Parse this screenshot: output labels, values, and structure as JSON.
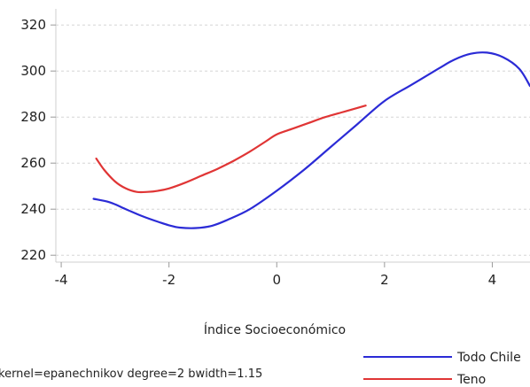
{
  "chart_data": {
    "type": "line",
    "title": "",
    "xlabel": "Índice Socioeconómico",
    "ylabel": "",
    "xlim": [
      -4.1,
      4.7
    ],
    "ylim": [
      217,
      327
    ],
    "x_ticks": [
      -4,
      -2,
      0,
      2,
      4
    ],
    "y_ticks": [
      220,
      240,
      260,
      280,
      300,
      320
    ],
    "x_tick_labels": [
      "-4",
      "-2",
      "0",
      "2",
      "4"
    ],
    "y_tick_labels": [
      "220",
      "240",
      "260",
      "280",
      "300",
      "320"
    ],
    "grid": "horizontal dashed",
    "legend_position": "bottom-right",
    "note": "kernel=epanechnikov degree=2 bwidth=1.15",
    "series": [
      {
        "name": "Todo Chile",
        "color": "#2b2bd6",
        "x": [
          -3.4,
          -3.1,
          -2.8,
          -2.5,
          -2.2,
          -2.0,
          -1.8,
          -1.5,
          -1.2,
          -0.9,
          -0.5,
          0.0,
          0.5,
          1.0,
          1.5,
          2.0,
          2.5,
          3.0,
          3.3,
          3.6,
          3.9,
          4.2,
          4.5,
          4.7
        ],
        "values": [
          244.5,
          243,
          240,
          237,
          234.5,
          233,
          232,
          231.8,
          232.8,
          235.5,
          240,
          248,
          257,
          267,
          277,
          287,
          294,
          301,
          305,
          307.5,
          308,
          306,
          301,
          293.5
        ]
      },
      {
        "name": "Teno",
        "color": "#e03535",
        "x": [
          -3.35,
          -3.2,
          -3.0,
          -2.8,
          -2.6,
          -2.4,
          -2.2,
          -2.0,
          -1.7,
          -1.4,
          -1.1,
          -0.8,
          -0.5,
          -0.2,
          0.0,
          0.3,
          0.6,
          0.9,
          1.2,
          1.5,
          1.65
        ],
        "values": [
          262,
          257,
          252,
          249,
          247.5,
          247.5,
          248,
          249,
          251.5,
          254.5,
          257.5,
          261,
          265,
          269.5,
          272.5,
          275,
          277.5,
          280,
          282,
          284,
          285
        ]
      }
    ]
  }
}
